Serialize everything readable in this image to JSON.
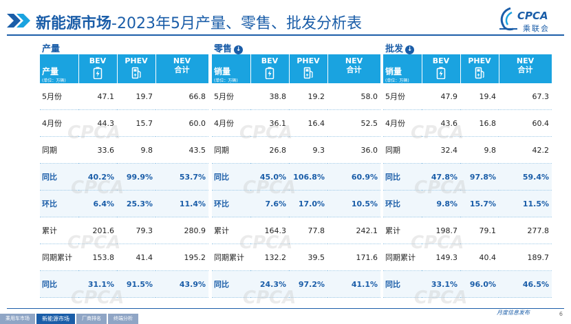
{
  "header": {
    "title_bold": "新能源市场",
    "title_rest": "-2023年5月产量、零售、批发分析表"
  },
  "logo": {
    "brand": "CPCA",
    "cn": "乘联会"
  },
  "columns": {
    "bev": "BEV",
    "phev": "PHEV",
    "nev1": "NEV",
    "nev2": "合计",
    "unit": "(单位：万辆)"
  },
  "panels": [
    {
      "title": "产量",
      "row_label": "产量",
      "rows": [
        {
          "label": "5月份",
          "bev": "47.1",
          "phev": "19.7",
          "nev": "66.8"
        },
        {
          "label": "4月份",
          "bev": "44.3",
          "phev": "15.7",
          "nev": "60.0"
        },
        {
          "label": "同期",
          "bev": "33.6",
          "phev": "9.8",
          "nev": "43.5"
        },
        {
          "label": "同比",
          "bev": "40.2%",
          "phev": "99.9%",
          "nev": "53.7%",
          "hl": true
        },
        {
          "label": "环比",
          "bev": "6.4%",
          "phev": "25.3%",
          "nev": "11.4%",
          "hl": true
        },
        {
          "label": "累计",
          "bev": "201.6",
          "phev": "79.3",
          "nev": "280.9"
        },
        {
          "label": "同期累计",
          "bev": "153.8",
          "phev": "41.4",
          "nev": "195.2"
        },
        {
          "label": "同比",
          "bev": "31.1%",
          "phev": "91.5%",
          "nev": "43.9%",
          "hl": true
        }
      ]
    },
    {
      "title": "零售",
      "row_label": "销量",
      "rows": [
        {
          "label": "5月份",
          "bev": "38.8",
          "phev": "19.2",
          "nev": "58.0"
        },
        {
          "label": "4月份",
          "bev": "36.1",
          "phev": "16.4",
          "nev": "52.5"
        },
        {
          "label": "同期",
          "bev": "26.8",
          "phev": "9.3",
          "nev": "36.0"
        },
        {
          "label": "同比",
          "bev": "45.0%",
          "phev": "106.8%",
          "nev": "60.9%",
          "hl": true
        },
        {
          "label": "环比",
          "bev": "7.6%",
          "phev": "17.0%",
          "nev": "10.5%",
          "hl": true
        },
        {
          "label": "累计",
          "bev": "164.3",
          "phev": "77.8",
          "nev": "242.1"
        },
        {
          "label": "同期累计",
          "bev": "132.2",
          "phev": "39.5",
          "nev": "171.6"
        },
        {
          "label": "同比",
          "bev": "24.3%",
          "phev": "97.2%",
          "nev": "41.1%",
          "hl": true
        }
      ]
    },
    {
      "title": "批发",
      "row_label": "销量",
      "rows": [
        {
          "label": "5月份",
          "bev": "47.9",
          "phev": "19.4",
          "nev": "67.3"
        },
        {
          "label": "4月份",
          "bev": "43.6",
          "phev": "16.8",
          "nev": "60.4"
        },
        {
          "label": "同期",
          "bev": "32.4",
          "phev": "9.8",
          "nev": "42.2"
        },
        {
          "label": "同比",
          "bev": "47.8%",
          "phev": "97.8%",
          "nev": "59.4%",
          "hl": true
        },
        {
          "label": "环比",
          "bev": "9.8%",
          "phev": "15.7%",
          "nev": "11.5%",
          "hl": true
        },
        {
          "label": "累计",
          "bev": "198.7",
          "phev": "79.1",
          "nev": "277.8"
        },
        {
          "label": "同期累计",
          "bev": "149.3",
          "phev": "40.4",
          "nev": "189.7"
        },
        {
          "label": "同比",
          "bev": "33.1%",
          "phev": "96.0%",
          "nev": "46.5%",
          "hl": true
        }
      ]
    }
  ],
  "watermark": "CPCA",
  "footer": {
    "nav": [
      "乘用车市场",
      "新能源市场",
      "厂商排名",
      "终端分析"
    ],
    "active": 1,
    "tagline": "月度信息发布",
    "page": "6"
  },
  "colors": {
    "accent": "#1a5da8",
    "header_bg": "#1aa3e0"
  }
}
